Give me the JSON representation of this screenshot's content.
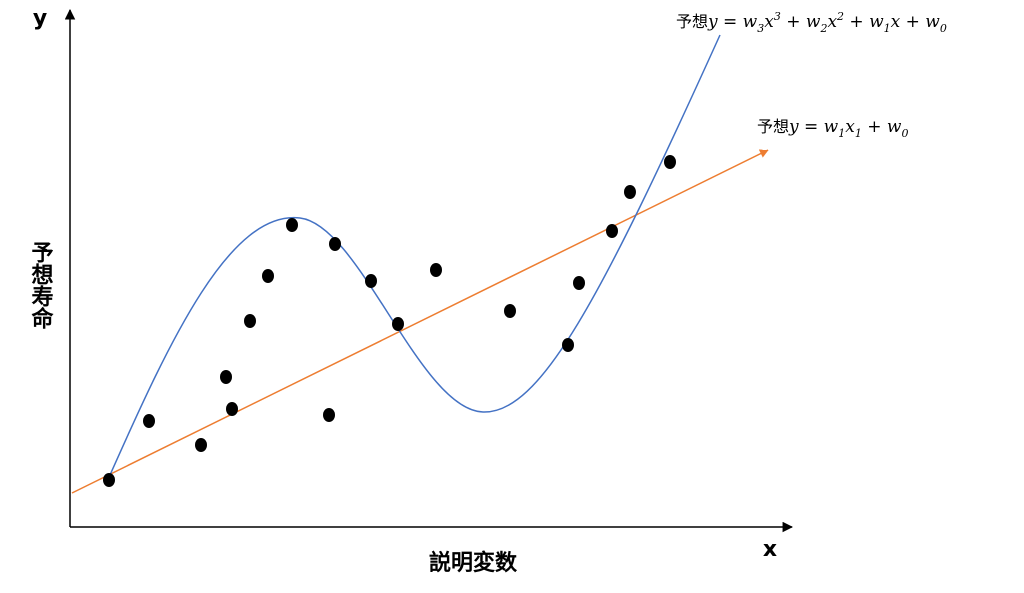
{
  "axes": {
    "y": "y",
    "x": "x",
    "y_title": "予想寿命",
    "x_title": "説明変数"
  },
  "cubic_label": {
    "prefix": "予想",
    "parts": [
      "y = w",
      "3",
      "x",
      "3",
      " + w",
      "2",
      "x",
      "2",
      " + w",
      "1",
      "x + w",
      "0"
    ]
  },
  "linear_label": {
    "prefix": "予想",
    "parts": [
      "y = w",
      "1",
      "x",
      "1",
      " + w",
      "0"
    ]
  }
}
